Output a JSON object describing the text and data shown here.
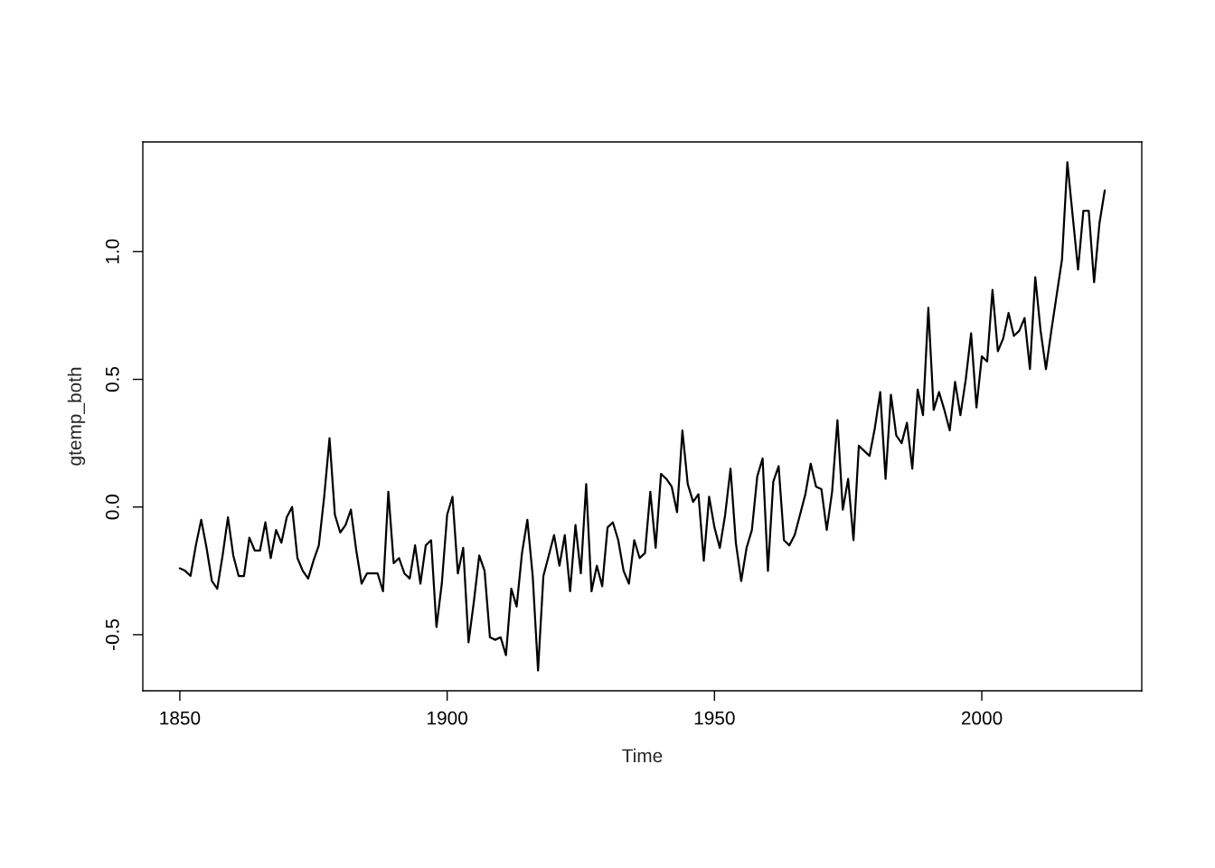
{
  "chart_data": {
    "type": "line",
    "xlabel": "Time",
    "ylabel": "gtemp_both",
    "x": [
      1850,
      1851,
      1852,
      1853,
      1854,
      1855,
      1856,
      1857,
      1858,
      1859,
      1860,
      1861,
      1862,
      1863,
      1864,
      1865,
      1866,
      1867,
      1868,
      1869,
      1870,
      1871,
      1872,
      1873,
      1874,
      1875,
      1876,
      1877,
      1878,
      1879,
      1880,
      1881,
      1882,
      1883,
      1884,
      1885,
      1886,
      1887,
      1888,
      1889,
      1890,
      1891,
      1892,
      1893,
      1894,
      1895,
      1896,
      1897,
      1898,
      1899,
      1900,
      1901,
      1902,
      1903,
      1904,
      1905,
      1906,
      1907,
      1908,
      1909,
      1910,
      1911,
      1912,
      1913,
      1914,
      1915,
      1916,
      1917,
      1918,
      1919,
      1920,
      1921,
      1922,
      1923,
      1924,
      1925,
      1926,
      1927,
      1928,
      1929,
      1930,
      1931,
      1932,
      1933,
      1934,
      1935,
      1936,
      1937,
      1938,
      1939,
      1940,
      1941,
      1942,
      1943,
      1944,
      1945,
      1946,
      1947,
      1948,
      1949,
      1950,
      1951,
      1952,
      1953,
      1954,
      1955,
      1956,
      1957,
      1958,
      1959,
      1960,
      1961,
      1962,
      1963,
      1964,
      1965,
      1966,
      1967,
      1968,
      1969,
      1970,
      1971,
      1972,
      1973,
      1974,
      1975,
      1976,
      1977,
      1978,
      1979,
      1980,
      1981,
      1982,
      1983,
      1984,
      1985,
      1986,
      1987,
      1988,
      1989,
      1990,
      1991,
      1992,
      1993,
      1994,
      1995,
      1996,
      1997,
      1998,
      1999,
      2000,
      2001,
      2002,
      2003,
      2004,
      2005,
      2006,
      2007,
      2008,
      2009,
      2010,
      2011,
      2012,
      2013,
      2014,
      2015,
      2016,
      2017,
      2018,
      2019,
      2020,
      2021,
      2022,
      2023
    ],
    "series": [
      {
        "color": "#000000",
        "values": [
          -0.24,
          -0.25,
          -0.27,
          -0.15,
          -0.05,
          -0.16,
          -0.29,
          -0.32,
          -0.19,
          -0.04,
          -0.19,
          -0.27,
          -0.27,
          -0.12,
          -0.17,
          -0.17,
          -0.06,
          -0.2,
          -0.09,
          -0.14,
          -0.04,
          0.0,
          -0.2,
          -0.25,
          -0.28,
          -0.21,
          -0.15,
          0.04,
          0.27,
          -0.03,
          -0.1,
          -0.07,
          -0.01,
          -0.17,
          -0.3,
          -0.26,
          -0.26,
          -0.26,
          -0.33,
          0.06,
          -0.22,
          -0.2,
          -0.26,
          -0.28,
          -0.15,
          -0.3,
          -0.15,
          -0.13,
          -0.47,
          -0.3,
          -0.03,
          0.04,
          -0.26,
          -0.16,
          -0.53,
          -0.37,
          -0.19,
          -0.25,
          -0.51,
          -0.52,
          -0.51,
          -0.58,
          -0.32,
          -0.39,
          -0.18,
          -0.05,
          -0.27,
          -0.64,
          -0.27,
          -0.19,
          -0.11,
          -0.23,
          -0.11,
          -0.33,
          -0.07,
          -0.26,
          0.09,
          -0.33,
          -0.23,
          -0.31,
          -0.08,
          -0.06,
          -0.13,
          -0.25,
          -0.3,
          -0.13,
          -0.2,
          -0.18,
          0.06,
          -0.16,
          0.13,
          0.11,
          0.08,
          -0.02,
          0.3,
          0.09,
          0.02,
          0.05,
          -0.21,
          0.04,
          -0.08,
          -0.16,
          -0.03,
          0.15,
          -0.14,
          -0.29,
          -0.16,
          -0.09,
          0.12,
          0.19,
          -0.25,
          0.1,
          0.16,
          -0.13,
          -0.15,
          -0.11,
          -0.03,
          0.05,
          0.17,
          0.08,
          0.07,
          -0.09,
          0.06,
          0.34,
          -0.01,
          0.11,
          -0.13,
          0.24,
          0.22,
          0.2,
          0.31,
          0.45,
          0.11,
          0.44,
          0.28,
          0.25,
          0.33,
          0.15,
          0.46,
          0.36,
          0.78,
          0.38,
          0.45,
          0.38,
          0.3,
          0.49,
          0.36,
          0.5,
          0.68,
          0.39,
          0.59,
          0.57,
          0.85,
          0.61,
          0.66,
          0.76,
          0.67,
          0.69,
          0.74,
          0.54,
          0.9,
          0.69,
          0.54,
          0.69,
          0.83,
          0.97,
          1.35,
          1.14,
          0.93,
          1.16,
          1.16,
          0.88,
          1.11,
          1.24
        ]
      }
    ],
    "xlim": [
      1843.08,
      2029.92
    ],
    "ylim": [
      -0.7196,
      1.4296
    ],
    "xticks": [
      1850,
      1900,
      1950,
      2000
    ],
    "yticks": [
      {
        "value": -0.5,
        "label": "-0.5"
      },
      {
        "value": 0,
        "label": "0.0"
      },
      {
        "value": 0.5,
        "label": "0.5"
      },
      {
        "value": 1,
        "label": "1.0"
      }
    ],
    "grid": false,
    "legend": false,
    "marker": "none",
    "line_style": "solid"
  }
}
